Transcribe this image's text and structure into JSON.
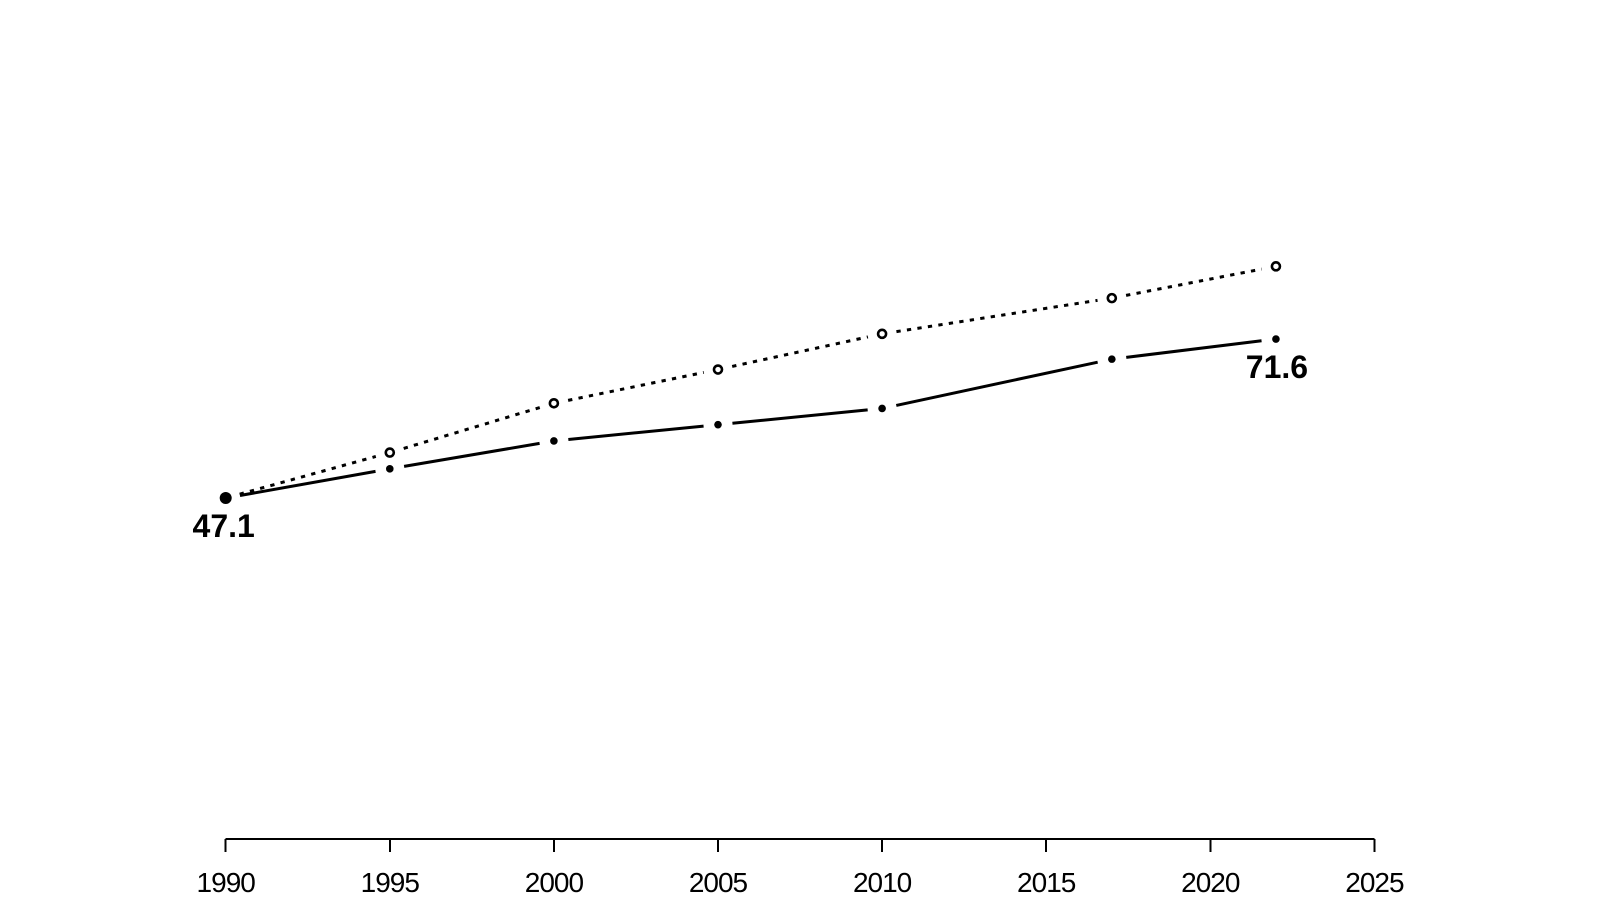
{
  "page": {
    "background_color": "#ffffff",
    "foreground_color": "#000000"
  },
  "chart_data": {
    "type": "line",
    "title": "",
    "xlabel": "",
    "ylabel": "",
    "grid": false,
    "legend": "none",
    "x": [
      1990,
      1995,
      2000,
      2005,
      2010,
      2017,
      2022
    ],
    "series": [
      {
        "name": "dotted-open-circle-series",
        "line_style": "dotted",
        "marker": "open-circle",
        "color": "#000000",
        "values": [
          47.1,
          54.1,
          61.7,
          66.9,
          72.4,
          77.9,
          82.8
        ]
      },
      {
        "name": "solid-filled-point-series",
        "line_style": "solid",
        "marker": "filled-circle",
        "color": "#000000",
        "values": [
          47.1,
          51.6,
          55.9,
          58.4,
          60.9,
          68.5,
          71.6
        ]
      }
    ],
    "annotations": [
      {
        "text": "47.1",
        "year": 1990,
        "value": 47.1,
        "series": "solid-filled-point-series",
        "position": "below"
      },
      {
        "text": "71.6",
        "year": 2022,
        "value": 71.6,
        "series": "solid-filled-point-series",
        "position": "below"
      }
    ],
    "x_axis": {
      "visible": true,
      "ticks": [
        1990,
        1995,
        2000,
        2005,
        2010,
        2015,
        2020,
        2025
      ],
      "range": [
        1990,
        2025
      ]
    },
    "y_axis": {
      "visible": false
    }
  }
}
